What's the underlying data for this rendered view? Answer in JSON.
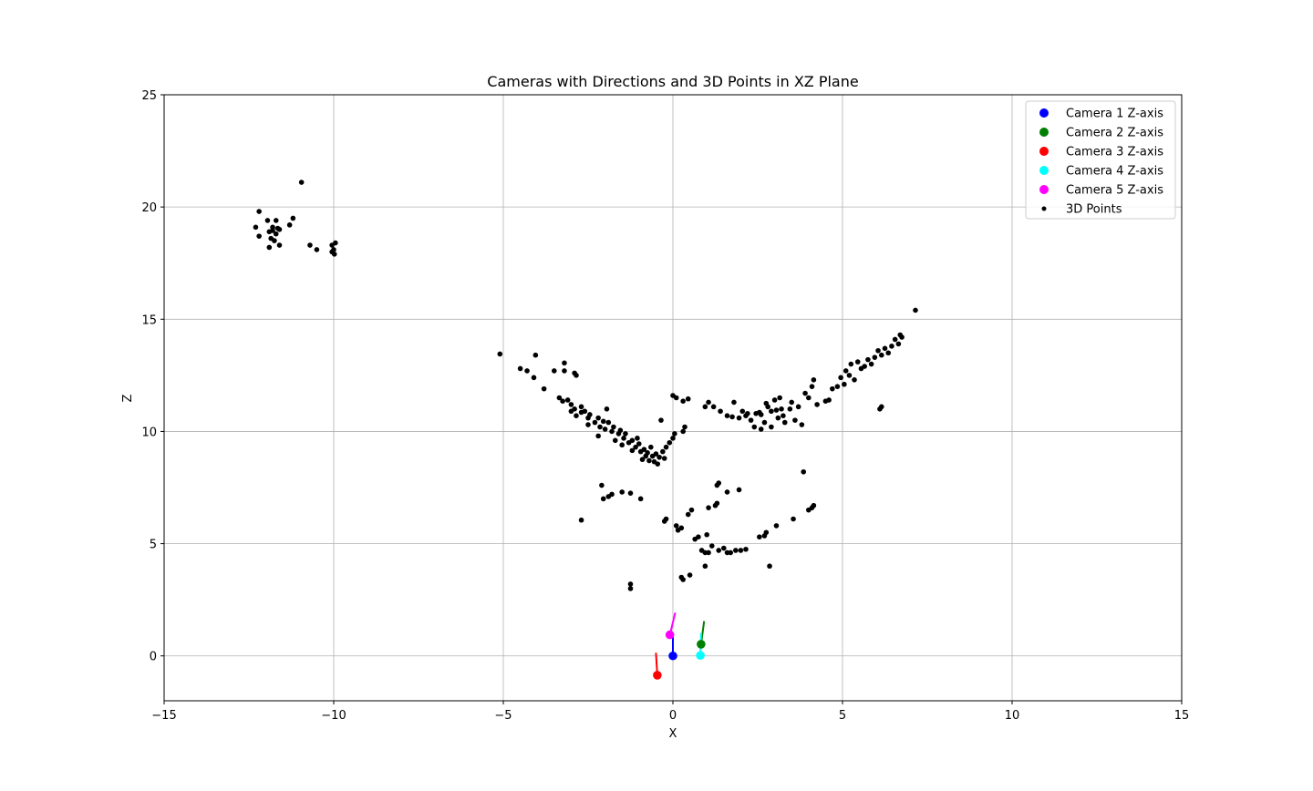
{
  "chart_data": {
    "type": "scatter",
    "title": "Cameras with Directions and 3D Points in XZ Plane",
    "xlabel": "X",
    "ylabel": "Z",
    "xlim": [
      -15,
      15
    ],
    "ylim": [
      -2,
      25
    ],
    "xticks": [
      -15,
      -10,
      -5,
      0,
      5,
      10,
      15
    ],
    "yticks": [
      0,
      5,
      10,
      15,
      20,
      25
    ],
    "xtick_labels": [
      "−15",
      "−10",
      "−5",
      "0",
      "5",
      "10",
      "15"
    ],
    "ytick_labels": [
      "0",
      "5",
      "10",
      "15",
      "20",
      "25"
    ],
    "grid": true,
    "legend_position": "top-right",
    "cameras": [
      {
        "name": "Camera 1 Z-axis",
        "color": "#0000ff",
        "x": 0.0,
        "z": 0.0,
        "dir_end": [
          0.0,
          1.0
        ]
      },
      {
        "name": "Camera 2 Z-axis",
        "color": "#008000",
        "x": 0.83,
        "z": 0.52,
        "dir_end": [
          0.92,
          1.55
        ]
      },
      {
        "name": "Camera 3 Z-axis",
        "color": "#ff0000",
        "x": -0.46,
        "z": -0.86,
        "dir_end": [
          -0.5,
          0.14
        ]
      },
      {
        "name": "Camera 4 Z-axis",
        "color": "#00ffff",
        "x": 0.81,
        "z": 0.02,
        "dir_end": [
          0.83,
          1.02
        ]
      },
      {
        "name": "Camera 5 Z-axis",
        "color": "#ff00ff",
        "x": -0.09,
        "z": 0.94,
        "dir_end": [
          0.07,
          1.93
        ]
      }
    ],
    "points_label": "3D Points",
    "points_color": "#000000",
    "points": [
      [
        -12.2,
        19.8
      ],
      [
        -12.3,
        19.1
      ],
      [
        -12.2,
        18.7
      ],
      [
        -11.95,
        19.4
      ],
      [
        -11.9,
        18.9
      ],
      [
        -11.8,
        19.1
      ],
      [
        -11.7,
        18.8
      ],
      [
        -11.7,
        19.4
      ],
      [
        -11.6,
        19.0
      ],
      [
        -11.85,
        18.6
      ],
      [
        -11.75,
        18.5
      ],
      [
        -11.9,
        18.2
      ],
      [
        -11.6,
        18.3
      ],
      [
        -11.3,
        19.2
      ],
      [
        -11.2,
        19.5
      ],
      [
        -11.65,
        19.05
      ],
      [
        -11.8,
        18.95
      ],
      [
        -10.95,
        21.1
      ],
      [
        -10.7,
        18.3
      ],
      [
        -10.5,
        18.1
      ],
      [
        -10.05,
        18.3
      ],
      [
        -10.0,
        18.1
      ],
      [
        -10.05,
        18.0
      ],
      [
        -9.95,
        18.4
      ],
      [
        -9.98,
        17.9
      ],
      [
        -5.1,
        13.45
      ],
      [
        -4.5,
        12.8
      ],
      [
        -4.3,
        12.7
      ],
      [
        -4.05,
        13.4
      ],
      [
        -4.1,
        12.4
      ],
      [
        -3.8,
        11.9
      ],
      [
        -3.5,
        12.7
      ],
      [
        -3.2,
        13.05
      ],
      [
        -3.2,
        12.7
      ],
      [
        -2.9,
        12.6
      ],
      [
        -2.85,
        12.5
      ],
      [
        -3.35,
        11.5
      ],
      [
        -3.25,
        11.35
      ],
      [
        -3.1,
        11.4
      ],
      [
        -3.0,
        11.2
      ],
      [
        -2.9,
        11.0
      ],
      [
        -2.85,
        10.7
      ],
      [
        -2.7,
        10.85
      ],
      [
        -2.6,
        10.9
      ],
      [
        -2.5,
        10.6
      ],
      [
        -2.45,
        10.75
      ],
      [
        -2.3,
        10.4
      ],
      [
        -2.2,
        10.6
      ],
      [
        -2.15,
        10.2
      ],
      [
        -2.05,
        10.45
      ],
      [
        -2.0,
        10.1
      ],
      [
        -1.9,
        10.4
      ],
      [
        -1.8,
        10.0
      ],
      [
        -1.75,
        10.2
      ],
      [
        -1.6,
        9.9
      ],
      [
        -1.55,
        10.05
      ],
      [
        -1.45,
        9.7
      ],
      [
        -1.4,
        9.9
      ],
      [
        -1.3,
        9.5
      ],
      [
        -1.2,
        9.6
      ],
      [
        -1.1,
        9.3
      ],
      [
        -1.0,
        9.45
      ],
      [
        -0.95,
        9.1
      ],
      [
        -0.85,
        9.2
      ],
      [
        -0.8,
        8.9
      ],
      [
        -0.75,
        9.05
      ],
      [
        -0.7,
        8.7
      ],
      [
        -0.6,
        8.9
      ],
      [
        -0.55,
        8.65
      ],
      [
        -0.5,
        9.0
      ],
      [
        -0.4,
        8.85
      ],
      [
        -0.3,
        9.1
      ],
      [
        -0.2,
        9.3
      ],
      [
        -0.1,
        9.5
      ],
      [
        0.0,
        9.7
      ],
      [
        0.05,
        9.9
      ],
      [
        -3.0,
        10.9
      ],
      [
        -2.7,
        11.1
      ],
      [
        -2.5,
        10.3
      ],
      [
        -2.2,
        9.8
      ],
      [
        -1.95,
        11.0
      ],
      [
        -1.7,
        9.6
      ],
      [
        -1.5,
        9.4
      ],
      [
        -1.2,
        9.15
      ],
      [
        -1.05,
        9.7
      ],
      [
        -0.9,
        8.75
      ],
      [
        -0.65,
        9.3
      ],
      [
        -0.45,
        8.55
      ],
      [
        -0.25,
        8.8
      ],
      [
        -0.35,
        10.5
      ],
      [
        0.1,
        11.5
      ],
      [
        0.0,
        11.6
      ],
      [
        0.3,
        11.35
      ],
      [
        0.45,
        11.45
      ],
      [
        0.35,
        10.2
      ],
      [
        0.3,
        10.0
      ],
      [
        0.95,
        11.1
      ],
      [
        1.05,
        11.3
      ],
      [
        1.2,
        11.1
      ],
      [
        1.4,
        10.9
      ],
      [
        1.6,
        10.7
      ],
      [
        1.75,
        10.65
      ],
      [
        1.8,
        11.3
      ],
      [
        2.05,
        10.9
      ],
      [
        2.15,
        10.7
      ],
      [
        2.3,
        10.5
      ],
      [
        2.4,
        10.2
      ],
      [
        2.45,
        10.8
      ],
      [
        2.6,
        10.75
      ],
      [
        2.7,
        10.4
      ],
      [
        2.8,
        11.1
      ],
      [
        2.9,
        10.9
      ],
      [
        3.0,
        11.4
      ],
      [
        3.1,
        10.6
      ],
      [
        3.15,
        11.5
      ],
      [
        3.25,
        10.7
      ],
      [
        3.3,
        10.4
      ],
      [
        3.45,
        11.0
      ],
      [
        3.5,
        11.3
      ],
      [
        3.6,
        10.5
      ],
      [
        3.7,
        11.1
      ],
      [
        3.8,
        10.3
      ],
      [
        3.9,
        11.7
      ],
      [
        4.0,
        11.5
      ],
      [
        4.1,
        12.0
      ],
      [
        4.15,
        12.3
      ],
      [
        4.25,
        11.2
      ],
      [
        4.5,
        11.35
      ],
      [
        4.6,
        11.4
      ],
      [
        4.7,
        11.9
      ],
      [
        4.85,
        12.0
      ],
      [
        4.95,
        12.4
      ],
      [
        5.05,
        12.1
      ],
      [
        5.1,
        12.7
      ],
      [
        5.2,
        12.5
      ],
      [
        5.25,
        13.0
      ],
      [
        5.35,
        12.3
      ],
      [
        5.45,
        13.1
      ],
      [
        5.55,
        12.8
      ],
      [
        5.65,
        12.9
      ],
      [
        5.75,
        13.2
      ],
      [
        5.85,
        13.0
      ],
      [
        5.95,
        13.3
      ],
      [
        6.05,
        13.6
      ],
      [
        6.15,
        13.4
      ],
      [
        6.25,
        13.7
      ],
      [
        6.35,
        13.5
      ],
      [
        6.45,
        13.8
      ],
      [
        6.55,
        14.1
      ],
      [
        6.65,
        13.9
      ],
      [
        6.75,
        14.2
      ],
      [
        6.7,
        14.3
      ],
      [
        2.6,
        10.1
      ],
      [
        2.9,
        10.2
      ],
      [
        3.05,
        10.95
      ],
      [
        2.55,
        10.85
      ],
      [
        2.75,
        11.25
      ],
      [
        3.2,
        11.0
      ],
      [
        2.2,
        10.8
      ],
      [
        1.95,
        10.6
      ],
      [
        6.15,
        11.1
      ],
      [
        6.1,
        11.0
      ],
      [
        7.15,
        15.4
      ],
      [
        -2.7,
        6.05
      ],
      [
        -2.1,
        7.6
      ],
      [
        -2.05,
        7.0
      ],
      [
        -1.9,
        7.1
      ],
      [
        -1.8,
        7.2
      ],
      [
        -1.5,
        7.3
      ],
      [
        -1.25,
        7.25
      ],
      [
        -0.95,
        7.0
      ],
      [
        -1.25,
        3.2
      ],
      [
        -1.25,
        3.0
      ],
      [
        -0.25,
        6.0
      ],
      [
        -0.2,
        6.1
      ],
      [
        0.1,
        5.8
      ],
      [
        0.15,
        5.6
      ],
      [
        0.25,
        5.7
      ],
      [
        0.45,
        6.3
      ],
      [
        0.55,
        6.5
      ],
      [
        0.65,
        5.2
      ],
      [
        0.75,
        5.3
      ],
      [
        0.85,
        4.7
      ],
      [
        0.95,
        4.6
      ],
      [
        1.0,
        5.4
      ],
      [
        1.05,
        4.6
      ],
      [
        1.15,
        4.9
      ],
      [
        1.25,
        6.7
      ],
      [
        1.3,
        6.8
      ],
      [
        1.35,
        4.7
      ],
      [
        1.5,
        4.8
      ],
      [
        1.6,
        4.6
      ],
      [
        1.7,
        4.6
      ],
      [
        1.85,
        4.7
      ],
      [
        2.0,
        4.7
      ],
      [
        2.15,
        4.75
      ],
      [
        2.55,
        5.3
      ],
      [
        2.7,
        5.35
      ],
      [
        2.75,
        5.5
      ],
      [
        3.05,
        5.8
      ],
      [
        3.55,
        6.1
      ],
      [
        3.85,
        8.2
      ],
      [
        4.0,
        6.5
      ],
      [
        4.15,
        6.7
      ],
      [
        4.1,
        6.6
      ],
      [
        1.3,
        7.6
      ],
      [
        1.35,
        7.7
      ],
      [
        1.95,
        7.4
      ],
      [
        1.05,
        6.6
      ],
      [
        1.6,
        7.3
      ],
      [
        0.95,
        4.0
      ],
      [
        2.85,
        4.0
      ],
      [
        0.25,
        3.5
      ],
      [
        0.3,
        3.4
      ],
      [
        0.5,
        3.6
      ]
    ]
  }
}
